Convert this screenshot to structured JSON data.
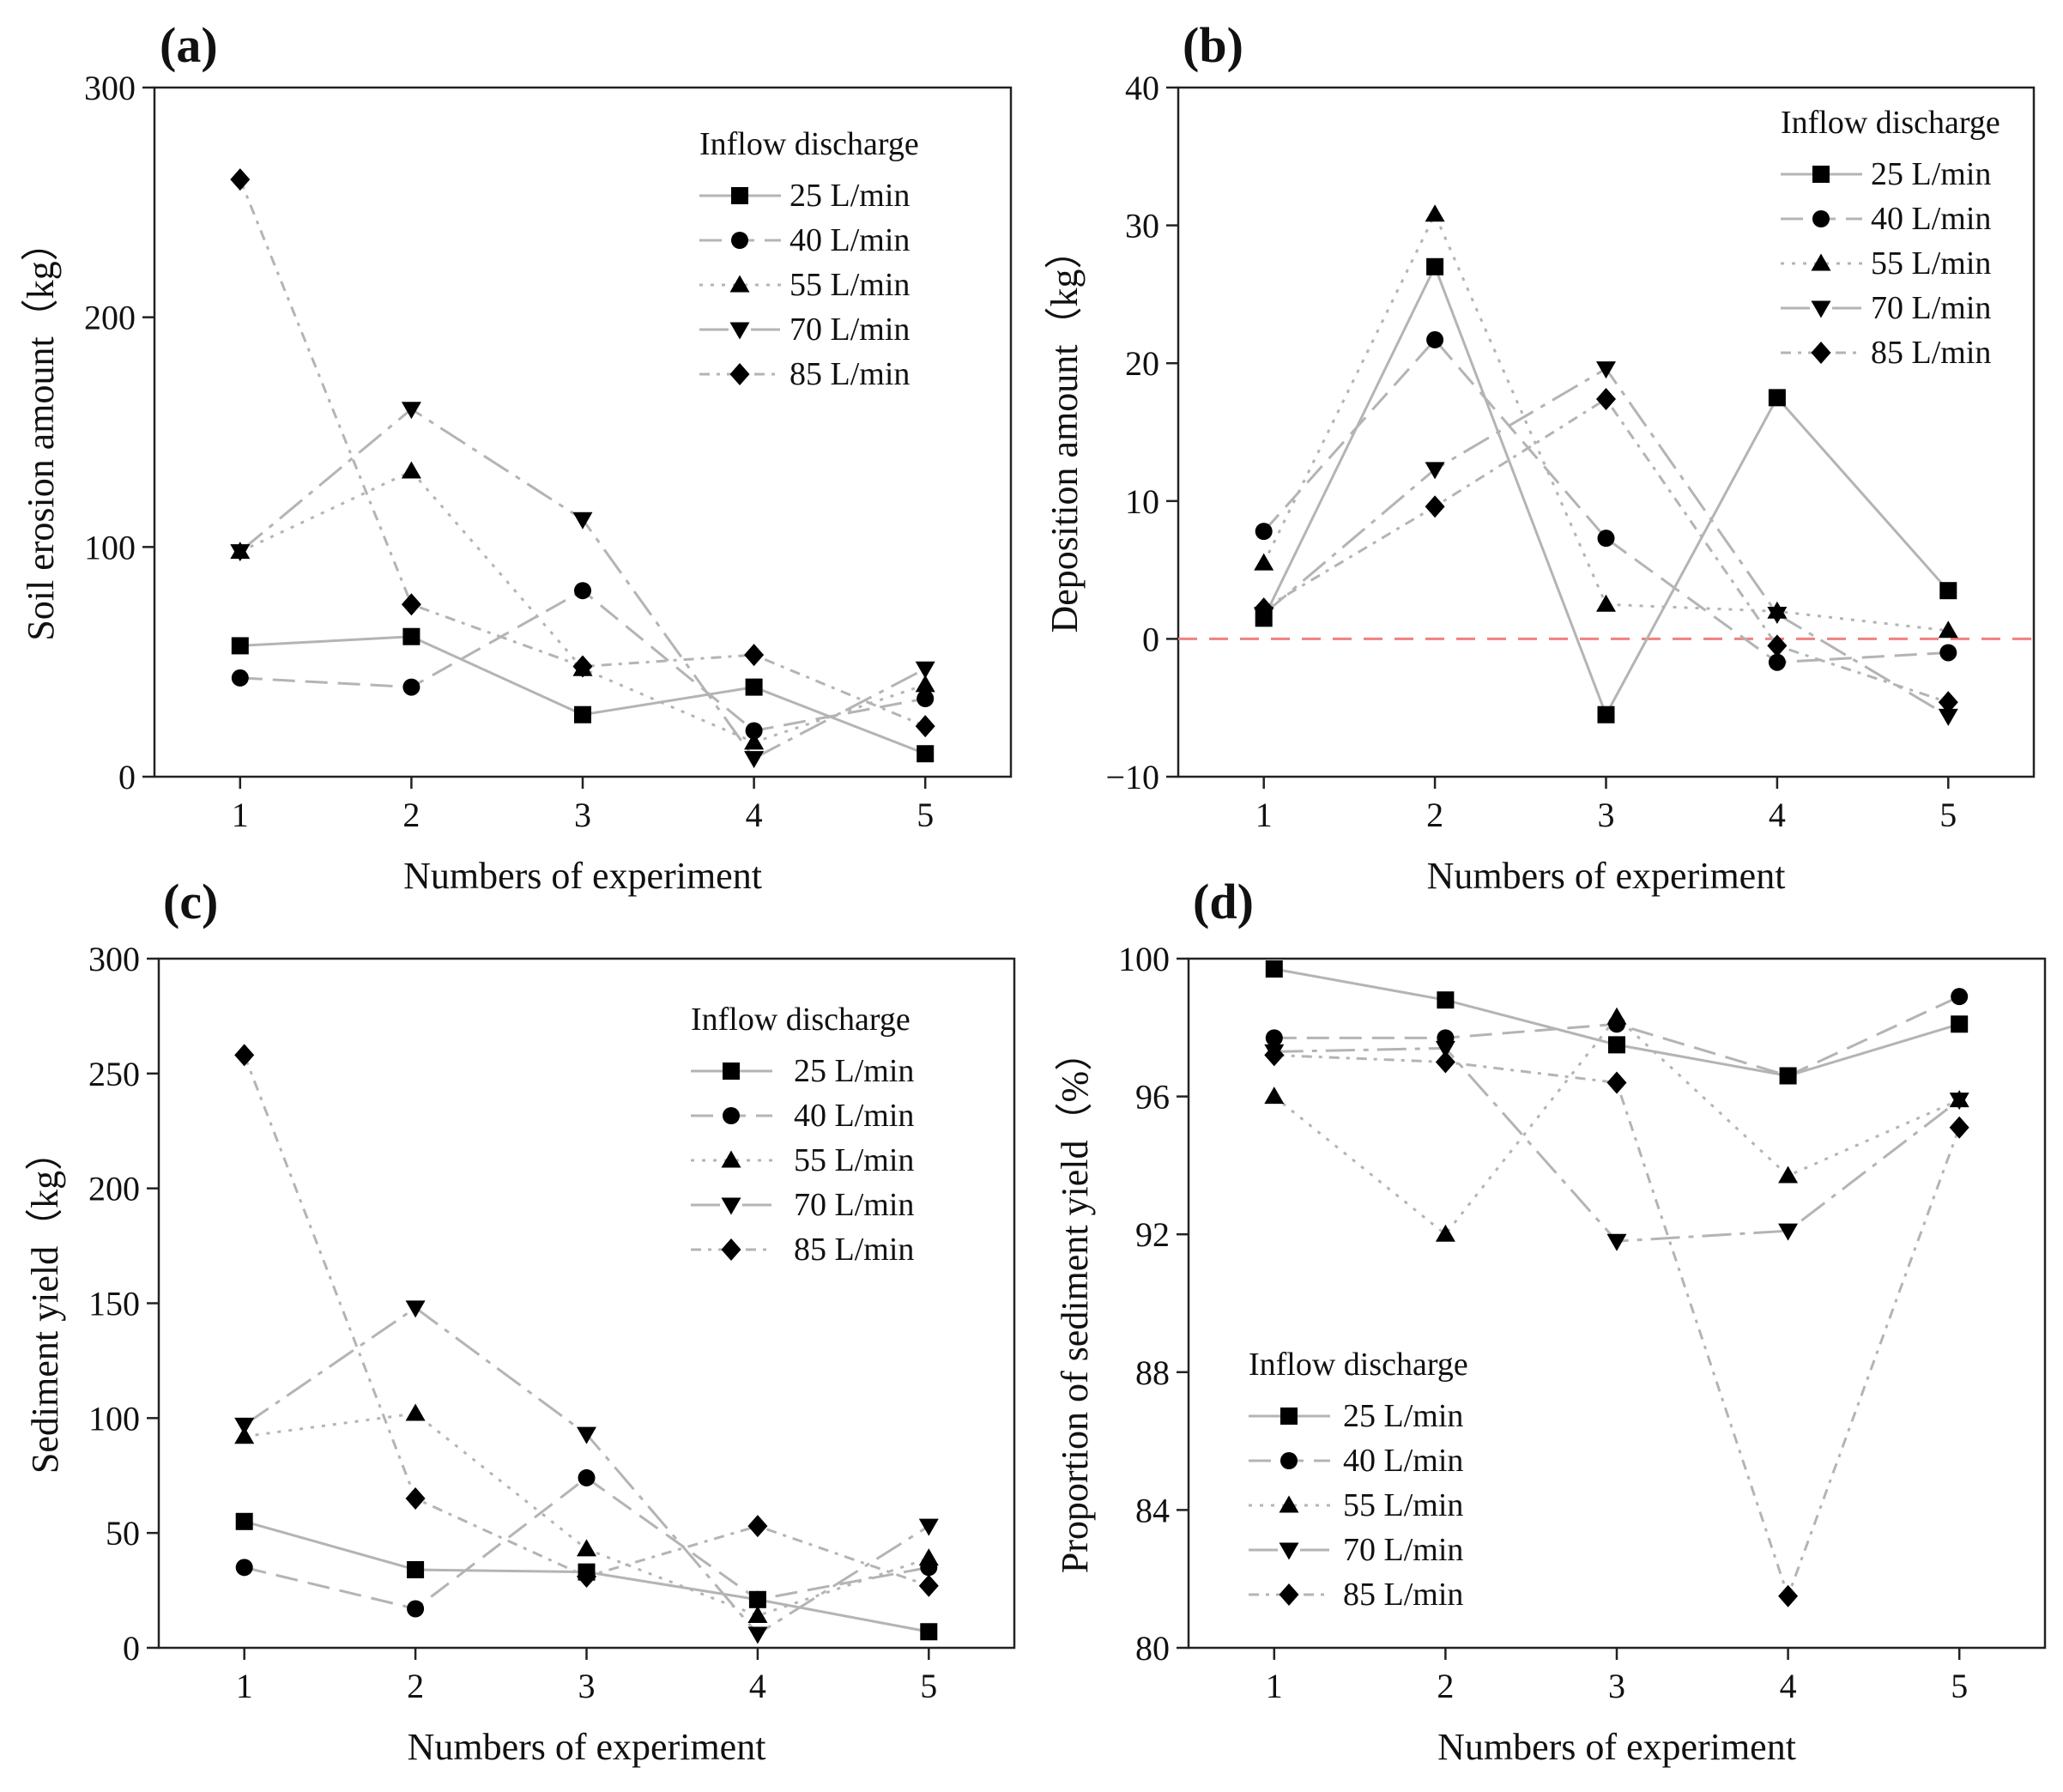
{
  "figure": {
    "x_axis_label": "Numbers of experiment",
    "legend_title": "Inflow discharge",
    "series_names": [
      "25 L/min",
      "40 L/min",
      "55 L/min",
      "70 L/min",
      "85 L/min"
    ],
    "line_color": "#b4b4b4",
    "marker_color": "#000000",
    "zero_line_color": "#f08080"
  },
  "chart_data": [
    {
      "panel": "(a)",
      "type": "line",
      "ylabel": "Soil erosion amount（kg）",
      "xlabel": "Numbers of experiment",
      "x": [
        1,
        2,
        3,
        4,
        5
      ],
      "ylim": [
        0,
        300
      ],
      "yticks": [
        0,
        100,
        200,
        300
      ],
      "legend_position": "top-right",
      "series": [
        {
          "name": "25 L/min",
          "marker": "square",
          "values": [
            57,
            61,
            27,
            39,
            10
          ]
        },
        {
          "name": "40 L/min",
          "marker": "circle",
          "values": [
            43,
            39,
            81,
            20,
            34
          ]
        },
        {
          "name": "55 L/min",
          "marker": "triangle-up",
          "values": [
            98,
            133,
            47,
            15,
            40
          ]
        },
        {
          "name": "70 L/min",
          "marker": "triangle-down",
          "values": [
            98,
            160,
            112,
            8,
            47
          ]
        },
        {
          "name": "85 L/min",
          "marker": "diamond",
          "values": [
            260,
            75,
            48,
            53,
            22
          ]
        }
      ]
    },
    {
      "panel": "(b)",
      "type": "line",
      "ylabel": "Deposition amount（kg）",
      "xlabel": "Numbers of experiment",
      "x": [
        1,
        2,
        3,
        4,
        5
      ],
      "ylim": [
        -10,
        40
      ],
      "yticks": [
        -10,
        0,
        10,
        20,
        30,
        40
      ],
      "reference_line": 0,
      "legend_position": "top-right",
      "series": [
        {
          "name": "25 L/min",
          "marker": "square",
          "values": [
            1.5,
            27,
            -5.5,
            17.5,
            3.5
          ]
        },
        {
          "name": "40 L/min",
          "marker": "circle",
          "values": [
            7.8,
            21.7,
            7.3,
            -1.7,
            -1
          ]
        },
        {
          "name": "55 L/min",
          "marker": "triangle-up",
          "values": [
            5.5,
            30.8,
            2.5,
            2,
            0.6
          ]
        },
        {
          "name": "70 L/min",
          "marker": "triangle-down",
          "values": [
            1.8,
            12.3,
            19.6,
            1.8,
            -5.6
          ]
        },
        {
          "name": "85 L/min",
          "marker": "diamond",
          "values": [
            2.2,
            9.6,
            17.4,
            -0.5,
            -4.6
          ]
        }
      ]
    },
    {
      "panel": "(c)",
      "type": "line",
      "ylabel": "Sediment yield（kg）",
      "xlabel": "Numbers of experiment",
      "x": [
        1,
        2,
        3,
        4,
        5
      ],
      "ylim": [
        0,
        300
      ],
      "yticks": [
        0,
        50,
        100,
        150,
        200,
        250,
        300
      ],
      "legend_position": "top-right",
      "series": [
        {
          "name": "25 L/min",
          "marker": "square",
          "values": [
            55,
            34,
            33,
            21,
            7
          ]
        },
        {
          "name": "40 L/min",
          "marker": "circle",
          "values": [
            35,
            17,
            74,
            21,
            35
          ]
        },
        {
          "name": "55 L/min",
          "marker": "triangle-up",
          "values": [
            92,
            102,
            43,
            14,
            39
          ]
        },
        {
          "name": "70 L/min",
          "marker": "triangle-down",
          "values": [
            97,
            148,
            93,
            6,
            53
          ]
        },
        {
          "name": "85 L/min",
          "marker": "diamond",
          "values": [
            258,
            65,
            31,
            53,
            27
          ]
        }
      ]
    },
    {
      "panel": "(d)",
      "type": "line",
      "ylabel": "Proportion of sediment yield（%）",
      "xlabel": "Numbers of experiment",
      "x": [
        1,
        2,
        3,
        4,
        5
      ],
      "ylim": [
        80,
        100
      ],
      "yticks": [
        80,
        84,
        88,
        92,
        96,
        100
      ],
      "legend_position": "bottom-left",
      "series": [
        {
          "name": "25 L/min",
          "marker": "square",
          "values": [
            99.7,
            98.8,
            97.5,
            96.6,
            98.1
          ]
        },
        {
          "name": "40 L/min",
          "marker": "circle",
          "values": [
            97.7,
            97.7,
            98.1,
            96.6,
            98.9
          ]
        },
        {
          "name": "55 L/min",
          "marker": "triangle-up",
          "values": [
            96,
            92,
            98.3,
            93.7,
            95.9
          ]
        },
        {
          "name": "70 L/min",
          "marker": "triangle-down",
          "values": [
            97.3,
            97.4,
            91.8,
            92.1,
            95.9
          ]
        },
        {
          "name": "85 L/min",
          "marker": "diamond",
          "values": [
            97.2,
            97,
            96.4,
            81.5,
            95.1
          ]
        }
      ]
    }
  ]
}
